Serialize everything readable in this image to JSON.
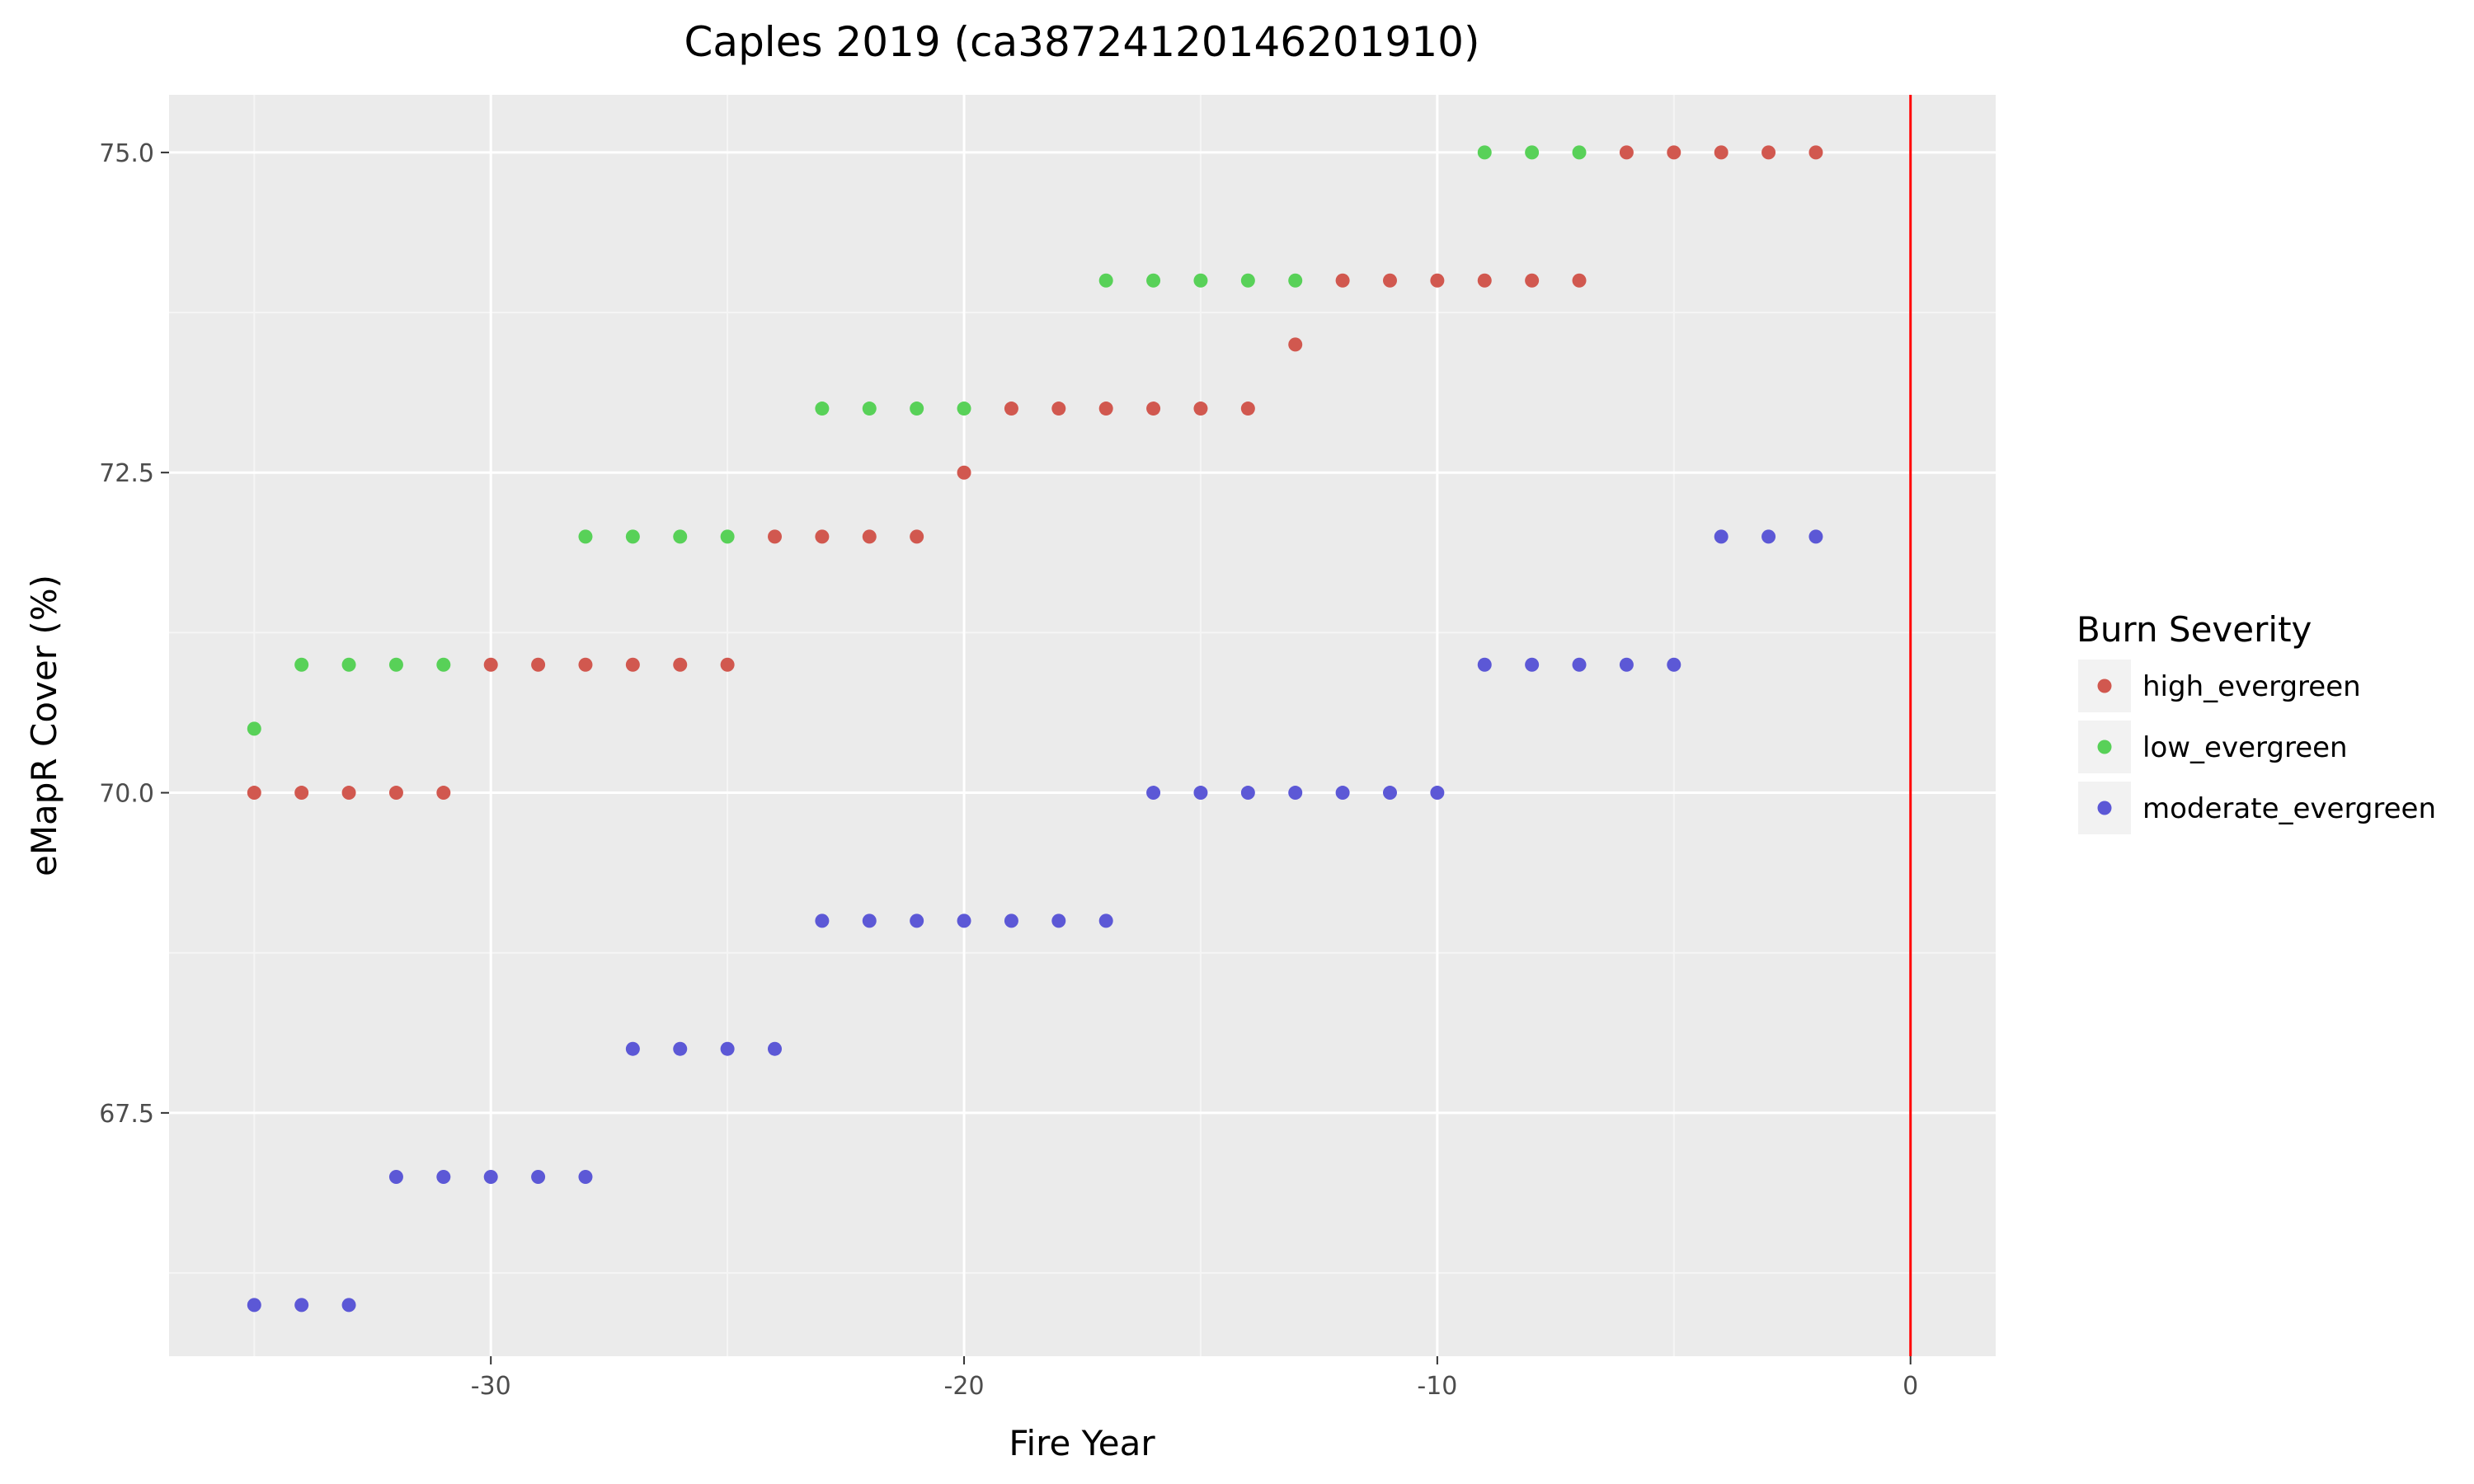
{
  "chart_data": {
    "type": "scatter",
    "title": "Caples 2019 (ca38724120146201910)",
    "xlabel": "Fire Year",
    "ylabel": "eMapR Cover (%)",
    "xlim": [
      -36.8,
      1.8
    ],
    "ylim": [
      65.6,
      75.45
    ],
    "x_ticks": [
      -30,
      -20,
      -10,
      0
    ],
    "x_tick_labels": [
      "-30",
      "-20",
      "-10",
      "0"
    ],
    "y_ticks": [
      67.5,
      70.0,
      72.5,
      75.0
    ],
    "y_tick_labels": [
      "67.5",
      "70.0",
      "72.5",
      "75.0"
    ],
    "grid": true,
    "vline": {
      "x": 0,
      "color": "#ff0000"
    },
    "legend": {
      "title": "Burn Severity",
      "position": "right"
    },
    "series": [
      {
        "name": "high_evergreen",
        "color": "#d1584f",
        "points": [
          [
            -35,
            70.0
          ],
          [
            -34,
            70.0
          ],
          [
            -33,
            70.0
          ],
          [
            -32,
            70.0
          ],
          [
            -31,
            70.0
          ],
          [
            -30,
            71.0
          ],
          [
            -29,
            71.0
          ],
          [
            -28,
            71.0
          ],
          [
            -27,
            71.0
          ],
          [
            -26,
            71.0
          ],
          [
            -25,
            71.0
          ],
          [
            -24,
            72.0
          ],
          [
            -23,
            72.0
          ],
          [
            -22,
            72.0
          ],
          [
            -21,
            72.0
          ],
          [
            -20,
            72.5
          ],
          [
            -19,
            73.0
          ],
          [
            -18,
            73.0
          ],
          [
            -17,
            73.0
          ],
          [
            -16,
            73.0
          ],
          [
            -15,
            73.0
          ],
          [
            -14,
            73.0
          ],
          [
            -13,
            73.5
          ],
          [
            -12,
            74.0
          ],
          [
            -11,
            74.0
          ],
          [
            -10,
            74.0
          ],
          [
            -9,
            74.0
          ],
          [
            -8,
            74.0
          ],
          [
            -7,
            74.0
          ],
          [
            -6,
            75.0
          ],
          [
            -5,
            75.0
          ],
          [
            -4,
            75.0
          ],
          [
            -3,
            75.0
          ],
          [
            -2,
            75.0
          ]
        ]
      },
      {
        "name": "low_evergreen",
        "color": "#58d158",
        "points": [
          [
            -35,
            70.5
          ],
          [
            -34,
            71.0
          ],
          [
            -33,
            71.0
          ],
          [
            -32,
            71.0
          ],
          [
            -31,
            71.0
          ],
          [
            -28,
            72.0
          ],
          [
            -27,
            72.0
          ],
          [
            -26,
            72.0
          ],
          [
            -25,
            72.0
          ],
          [
            -23,
            73.0
          ],
          [
            -22,
            73.0
          ],
          [
            -21,
            73.0
          ],
          [
            -20,
            73.0
          ],
          [
            -17,
            74.0
          ],
          [
            -16,
            74.0
          ],
          [
            -15,
            74.0
          ],
          [
            -14,
            74.0
          ],
          [
            -13,
            74.0
          ],
          [
            -9,
            75.0
          ],
          [
            -8,
            75.0
          ],
          [
            -7,
            75.0
          ]
        ]
      },
      {
        "name": "moderate_evergreen",
        "color": "#5c58d6",
        "points": [
          [
            -35,
            66.0
          ],
          [
            -34,
            66.0
          ],
          [
            -33,
            66.0
          ],
          [
            -32,
            67.0
          ],
          [
            -31,
            67.0
          ],
          [
            -30,
            67.0
          ],
          [
            -29,
            67.0
          ],
          [
            -28,
            67.0
          ],
          [
            -27,
            68.0
          ],
          [
            -26,
            68.0
          ],
          [
            -25,
            68.0
          ],
          [
            -24,
            68.0
          ],
          [
            -23,
            69.0
          ],
          [
            -22,
            69.0
          ],
          [
            -21,
            69.0
          ],
          [
            -20,
            69.0
          ],
          [
            -19,
            69.0
          ],
          [
            -18,
            69.0
          ],
          [
            -17,
            69.0
          ],
          [
            -16,
            70.0
          ],
          [
            -15,
            70.0
          ],
          [
            -14,
            70.0
          ],
          [
            -13,
            70.0
          ],
          [
            -12,
            70.0
          ],
          [
            -11,
            70.0
          ],
          [
            -10,
            70.0
          ],
          [
            -9,
            71.0
          ],
          [
            -8,
            71.0
          ],
          [
            -7,
            71.0
          ],
          [
            -6,
            71.0
          ],
          [
            -5,
            71.0
          ],
          [
            -4,
            72.0
          ],
          [
            -3,
            72.0
          ],
          [
            -2,
            72.0
          ]
        ]
      }
    ]
  }
}
